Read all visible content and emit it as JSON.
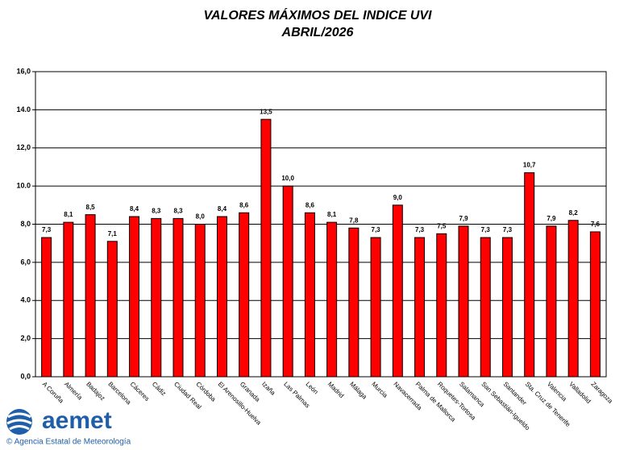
{
  "chart_data": {
    "type": "bar",
    "title": "VALORES MÁXIMOS DEL INDICE UVI",
    "subtitle": "ABRIL/2026",
    "categories": [
      "A Coruña",
      "Almería",
      "Badajoz",
      "Barcelona",
      "Cáceres",
      "Cádiz",
      "Ciudad Real",
      "Córdoba",
      "El Arenosillo-Huelva",
      "Granada",
      "Izaña",
      "Las Palmas",
      "León",
      "Madrid",
      "Málaga",
      "Murcia",
      "Navacerrada",
      "Palma de Mallorca",
      "Roquetes-Tortosa",
      "Salamanca",
      "San Sebastián-Igueldo",
      "Santander",
      "Sta. Cruz de Tenerife",
      "Valencia",
      "Valladolid",
      "Zaragoza"
    ],
    "values": [
      7.3,
      8.1,
      8.5,
      7.1,
      8.4,
      8.3,
      8.3,
      8.0,
      8.4,
      8.6,
      13.5,
      10.0,
      8.6,
      8.1,
      7.8,
      7.3,
      9.0,
      7.3,
      7.5,
      7.9,
      7.3,
      7.3,
      10.7,
      7.9,
      8.2,
      7.6
    ],
    "value_labels": [
      "7,3",
      "8,1",
      "8,5",
      "7,1",
      "8,4",
      "8,3",
      "8,3",
      "8,0",
      "8,4",
      "8,6",
      "13,5",
      "10,0",
      "8,6",
      "8,1",
      "7,8",
      "7,3",
      "9,0",
      "7,3",
      "7,5",
      "7,9",
      "7,3",
      "7,3",
      "10,7",
      "7,9",
      "8,2",
      "7,6"
    ],
    "color": "#ff0000",
    "ylim": [
      0,
      16
    ],
    "yticks": [
      {
        "value": 0,
        "label": "0,0"
      },
      {
        "value": 2,
        "label": "2,0"
      },
      {
        "value": 4,
        "label": "4.0"
      },
      {
        "value": 6,
        "label": "6,0"
      },
      {
        "value": 8,
        "label": "8,0"
      },
      {
        "value": 10,
        "label": "10.0"
      },
      {
        "value": 12,
        "label": "12,0"
      },
      {
        "value": 14,
        "label": "14.0"
      },
      {
        "value": 16,
        "label": "16,0"
      }
    ],
    "grid": true
  },
  "logo": {
    "name": "aemet",
    "caption": "© Agencia Estatal de Meteorología"
  }
}
